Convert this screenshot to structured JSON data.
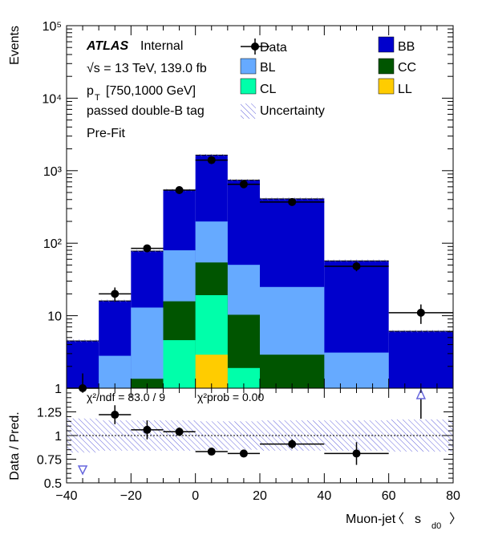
{
  "chart_data": [
    {
      "type": "bar",
      "stacked": true,
      "y_scale": "log",
      "ylim": [
        1,
        100000
      ],
      "xlim": [
        -40,
        80
      ],
      "ylabel": "Events",
      "y_tick_labels": [
        "1",
        "10",
        "10²",
        "10³",
        "10⁴",
        "10⁵"
      ],
      "bins": [
        [
          -40,
          -30
        ],
        [
          -30,
          -20
        ],
        [
          -20,
          -10
        ],
        [
          -10,
          0
        ],
        [
          0,
          10
        ],
        [
          10,
          20
        ],
        [
          20,
          40
        ],
        [
          40,
          60
        ],
        [
          60,
          80
        ]
      ],
      "series": [
        {
          "name": "LL",
          "color": "#ffcc00",
          "values": [
            0,
            0,
            0,
            0,
            2.9,
            0,
            0,
            0,
            0
          ]
        },
        {
          "name": "CL",
          "color": "#00ffaa",
          "values": [
            0,
            0,
            0,
            4.6,
            16.3,
            1.9,
            0,
            0,
            0
          ]
        },
        {
          "name": "CC",
          "color": "#005500",
          "values": [
            0,
            0,
            1.35,
            11.2,
            35,
            8.4,
            2.9,
            0,
            0
          ]
        },
        {
          "name": "BL",
          "color": "#66aaff",
          "values": [
            0,
            2.8,
            11.6,
            64,
            145,
            40,
            22,
            3.1,
            0
          ]
        },
        {
          "name": "BB",
          "color": "#0000cc",
          "values": [
            4.5,
            13.2,
            65,
            460,
            1440,
            690,
            385,
            54,
            6.1
          ]
        }
      ],
      "data_points": {
        "name": "Data",
        "x": [
          -35,
          -25,
          -15,
          -5,
          5,
          15,
          30,
          50,
          70
        ],
        "y": [
          1,
          20,
          85,
          540,
          1400,
          650,
          370,
          48,
          11
        ],
        "y_err": [
          0.6,
          4.5,
          9,
          23,
          37,
          25,
          19,
          7,
          3.3
        ]
      },
      "uncertainty_label": "Uncertainty",
      "legend": [
        "Data",
        "BB",
        "BL",
        "CC",
        "CL",
        "LL",
        "Uncertainty"
      ],
      "legend_placement": "top"
    },
    {
      "type": "scatter",
      "xlim": [
        -40,
        80
      ],
      "ylim": [
        0.5,
        1.5
      ],
      "xlabel": "Muon-jet 〈 s_d0 〉",
      "ylabel": "Data / Pred.",
      "x_ticks": [
        -40,
        -20,
        0,
        20,
        40,
        60,
        80
      ],
      "y_ticks": [
        "0.5",
        "0.75",
        "1",
        "1.25"
      ],
      "reference_line": 1,
      "points": {
        "x": [
          -25,
          -15,
          -5,
          5,
          15,
          30,
          50
        ],
        "y": [
          1.22,
          1.06,
          1.04,
          0.83,
          0.81,
          0.91,
          0.81
        ],
        "x_err": [
          5,
          5,
          5,
          5,
          5,
          10,
          10
        ],
        "y_err": [
          0.1,
          0.1,
          0.045,
          0.03,
          0.04,
          0.05,
          0.12
        ]
      },
      "out_of_range_markers": [
        {
          "x": -35,
          "direction": "down"
        },
        {
          "x": 70,
          "direction": "up"
        }
      ],
      "uncertainty_band": [
        0.18,
        0.16,
        0.16,
        0.16,
        0.15,
        0.15,
        0.16,
        0.16,
        0.17
      ]
    }
  ],
  "annotations": {
    "atlas": "ATLAS",
    "internal": "Internal",
    "energy": "√s = 13 TeV, 139.0 fb",
    "pt_p": "p",
    "pt_sub": "T",
    "pt_range": "[750,1000 GeV]",
    "tag": "passed double-B tag",
    "fit": "Pre-Fit",
    "chi2_ndf": "χ²/ndf = 83.0 / 9",
    "chi2_prob": "χ²prob = 0.00"
  },
  "xlabel_parts": {
    "main": "Muon-jet",
    "open": "〈",
    "s": "s",
    "sub": "d0",
    "close": "〉"
  }
}
